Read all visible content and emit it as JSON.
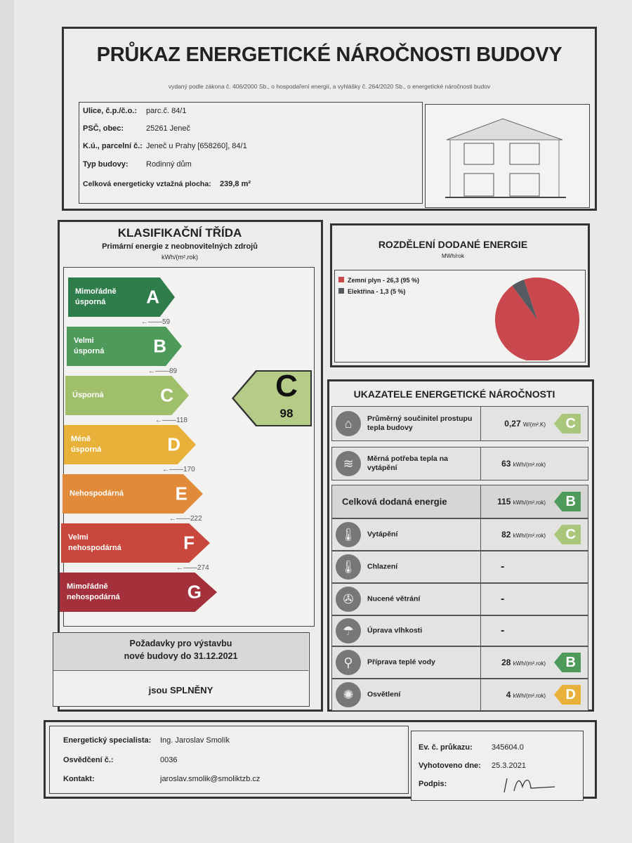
{
  "header": {
    "title": "PRŮKAZ ENERGETICKÉ NÁROČNOSTI BUDOVY",
    "subtitle": "vydaný podle zákona č. 406/2000 Sb., o hospodaření energií, a vyhlášky č. 264/2020 Sb., o energetické náročnosti budov"
  },
  "building": [
    {
      "label": "Ulice, č.p./č.o.:",
      "value": "parc.č. 84/1"
    },
    {
      "label": "PSČ, obec:",
      "value": "25261 Jeneč"
    },
    {
      "label": "K.ú., parcelní č.:",
      "value": "Jeneč u Prahy [658260], 84/1"
    },
    {
      "label": "Typ budovy:",
      "value": "Rodinný dům"
    },
    {
      "label": "Celková energeticky vztažná plocha:",
      "value": "239,8 m²"
    }
  ],
  "classification": {
    "title": "KLASIFIKAČNÍ TŘÍDA",
    "subtitle": "Primární energie z neobnovitelných zdrojů",
    "unit": "kWh/(m².rok)",
    "classes": [
      {
        "letter": "A",
        "label": "Mimořádně úsporná",
        "color": "#2f7d4a",
        "threshold": "59"
      },
      {
        "letter": "B",
        "label": "Velmi úsporná",
        "color": "#4e9a5a",
        "threshold": "89"
      },
      {
        "letter": "C",
        "label": "Úsporná",
        "color": "#9fbf6a",
        "threshold": "118"
      },
      {
        "letter": "D",
        "label": "Méně úsporná",
        "color": "#e8b23a",
        "threshold": "170"
      },
      {
        "letter": "E",
        "label": "Nehospodárná",
        "color": "#e08a3a",
        "threshold": "222"
      },
      {
        "letter": "F",
        "label": "Velmi nehospodárná",
        "color": "#c9473c",
        "threshold": "274"
      },
      {
        "letter": "G",
        "label": "Mimořádně nehospodárná",
        "color": "#a3303a",
        "threshold": ""
      }
    ],
    "result": {
      "letter": "C",
      "value": "98",
      "color": "#b5cc88"
    },
    "requirements": {
      "text1": "Požadavky pro výstavbu",
      "text2": "nové budovy do 31.12.2021",
      "status": "jsou SPLNĚNY"
    }
  },
  "distribution": {
    "title": "ROZDĚLENÍ DODANÉ ENERGIE",
    "unit": "MWh/rok",
    "items": [
      {
        "label": "Zemní plyn - 26,3 (95 %)",
        "value": 26.3,
        "percent": 95,
        "color": "#c8484e"
      },
      {
        "label": "Elektřina - 1,3 (5 %)",
        "value": 1.3,
        "percent": 5,
        "color": "#555a60"
      }
    ]
  },
  "indicators": {
    "title": "UKAZATELE ENERGETICKÉ NÁROČNOSTI",
    "rows": [
      {
        "icon": "house-icon",
        "name": "Průměrný součinitel prostupu tepla budovy",
        "value": "0,27",
        "unit": "W/(m².K)",
        "class": "C",
        "color": "#a9c77a"
      },
      {
        "icon": "heat-need-icon",
        "name": "Měrná potřeba tepla na vytápění",
        "value": "63",
        "unit": "kWh/(m².rok)",
        "class": "",
        "color": ""
      },
      {
        "icon": "",
        "name": "Celková dodaná energie",
        "value": "115",
        "unit": "kWh/(m².rok)",
        "class": "B",
        "color": "#4e9a5a"
      },
      {
        "icon": "heating-icon",
        "name": "Vytápění",
        "value": "82",
        "unit": "kWh/(m².rok)",
        "class": "C",
        "color": "#a9c77a"
      },
      {
        "icon": "cooling-icon",
        "name": "Chlazení",
        "value": "-",
        "unit": "",
        "class": "",
        "color": ""
      },
      {
        "icon": "fan-icon",
        "name": "Nucené větrání",
        "value": "-",
        "unit": "",
        "class": "",
        "color": ""
      },
      {
        "icon": "humidity-icon",
        "name": "Úprava vlhkosti",
        "value": "-",
        "unit": "",
        "class": "",
        "color": ""
      },
      {
        "icon": "tap-icon",
        "name": "Příprava teplé vody",
        "value": "28",
        "unit": "kWh/(m².rok)",
        "class": "B",
        "color": "#4e9a5a"
      },
      {
        "icon": "bulb-icon",
        "name": "Osvětlení",
        "value": "4",
        "unit": "kWh/(m².rok)",
        "class": "D",
        "color": "#e8b23a"
      }
    ]
  },
  "footer": {
    "specialist_label": "Energetický specialista:",
    "specialist": "Ing. Jaroslav Smolík",
    "cert_label": "Osvědčení č.:",
    "cert": "0036",
    "contact_label": "Kontakt:",
    "contact": "jaroslav.smolik@smoliktzb.cz",
    "ev_label": "Ev. č. průkazu:",
    "ev": "345604.0",
    "date_label": "Vyhotoveno dne:",
    "date": "25.3.2021",
    "sign_label": "Podpis:"
  }
}
